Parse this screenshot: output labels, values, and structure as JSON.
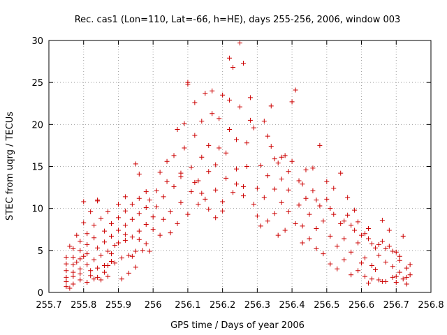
{
  "chart_data": {
    "type": "scatter",
    "title": "Rec. cas1 (Lon=110, Lat=-66, h=HE), days 255-256, 2006, window 003",
    "xlabel": "GPS time / Days of year 2006",
    "ylabel": "STEC from uqrg / TECUs",
    "xlim": [
      255.7,
      256.8
    ],
    "ylim": [
      0,
      30
    ],
    "xticks": [
      255.7,
      255.8,
      255.9,
      256,
      256.1,
      256.2,
      256.3,
      256.4,
      256.5,
      256.6,
      256.7,
      256.8
    ],
    "xtick_labels": [
      "255.7",
      "255.8",
      "255.9",
      "256",
      "256.1",
      "256.2",
      "256.3",
      "256.4",
      "256.5",
      "256.6",
      "256.7",
      "256.8"
    ],
    "yticks": [
      0,
      5,
      10,
      15,
      20,
      25,
      30
    ],
    "ytick_labels": [
      "0",
      "5",
      "10",
      "15",
      "20",
      "25",
      "30"
    ],
    "grid": true,
    "legend": "none",
    "marker": "plus",
    "color": "#cc0000",
    "series": [
      {
        "points": [
          [
            255.75,
            0.7
          ],
          [
            255.76,
            0.5
          ],
          [
            255.77,
            1.0
          ],
          [
            255.79,
            1.5
          ],
          [
            255.81,
            1.2
          ],
          [
            255.83,
            1.6
          ],
          [
            255.85,
            1.5
          ],
          [
            255.87,
            1.9
          ],
          [
            255.75,
            1.3
          ],
          [
            255.77,
            1.9
          ],
          [
            255.79,
            2.2
          ],
          [
            255.82,
            2.6
          ],
          [
            255.84,
            2.9
          ],
          [
            255.86,
            3.2
          ],
          [
            255.88,
            3.7
          ],
          [
            255.91,
            4.1
          ],
          [
            255.93,
            4.4
          ],
          [
            255.95,
            4.9
          ],
          [
            255.75,
            1.8
          ],
          [
            255.77,
            2.4
          ],
          [
            255.79,
            2.8
          ],
          [
            255.81,
            3.3
          ],
          [
            255.83,
            3.9
          ],
          [
            255.85,
            4.4
          ],
          [
            255.87,
            4.9
          ],
          [
            255.89,
            5.6
          ],
          [
            255.92,
            6.2
          ],
          [
            255.94,
            6.6
          ],
          [
            255.96,
            7.3
          ],
          [
            255.75,
            2.6
          ],
          [
            255.77,
            3.3
          ],
          [
            255.79,
            4.0
          ],
          [
            255.81,
            4.6
          ],
          [
            255.84,
            5.3
          ],
          [
            255.86,
            6.0
          ],
          [
            255.88,
            6.7
          ],
          [
            255.9,
            7.4
          ],
          [
            255.92,
            8.0
          ],
          [
            255.94,
            8.7
          ],
          [
            255.96,
            9.4
          ],
          [
            255.98,
            10.1
          ],
          [
            255.75,
            3.4
          ],
          [
            255.77,
            4.2
          ],
          [
            255.79,
            5.0
          ],
          [
            255.81,
            5.7
          ],
          [
            255.83,
            6.5
          ],
          [
            255.86,
            7.3
          ],
          [
            255.88,
            8.2
          ],
          [
            255.9,
            8.9
          ],
          [
            255.92,
            9.7
          ],
          [
            255.94,
            10.5
          ],
          [
            255.96,
            11.2
          ],
          [
            255.98,
            12.0
          ],
          [
            255.75,
            4.2
          ],
          [
            255.77,
            5.2
          ],
          [
            255.79,
            6.1
          ],
          [
            255.81,
            7.0
          ],
          [
            255.83,
            8.0
          ],
          [
            255.85,
            8.8
          ],
          [
            255.87,
            9.6
          ],
          [
            255.9,
            10.5
          ],
          [
            255.92,
            11.4
          ],
          [
            255.76,
            5.5
          ],
          [
            255.78,
            6.8
          ],
          [
            255.8,
            8.3
          ],
          [
            255.82,
            9.6
          ],
          [
            255.84,
            10.9
          ],
          [
            255.95,
            15.3
          ],
          [
            255.96,
            14.1
          ],
          [
            255.8,
            10.8
          ],
          [
            255.84,
            11.0
          ],
          [
            255.87,
            3.2
          ],
          [
            255.89,
            3.5
          ],
          [
            255.91,
            1.6
          ],
          [
            255.93,
            2.3
          ],
          [
            255.95,
            3.0
          ],
          [
            255.97,
            5.0
          ],
          [
            255.98,
            5.8
          ],
          [
            255.99,
            4.9
          ],
          [
            255.78,
            3.6
          ],
          [
            255.8,
            4.3
          ],
          [
            255.82,
            2.0
          ],
          [
            255.84,
            1.8
          ],
          [
            255.86,
            2.4
          ],
          [
            255.88,
            4.6
          ],
          [
            255.9,
            5.9
          ],
          [
            255.92,
            6.9
          ],
          [
            255.94,
            4.3
          ],
          [
            255.96,
            6.3
          ],
          [
            255.98,
            8.1
          ],
          [
            255.99,
            11.0
          ],
          [
            256.0,
            7.5
          ],
          [
            256.0,
            9.0
          ],
          [
            256.01,
            10.2
          ],
          [
            256.01,
            12.1
          ],
          [
            256.02,
            14.3
          ],
          [
            256.02,
            6.8
          ],
          [
            256.03,
            8.7
          ],
          [
            256.03,
            11.4
          ],
          [
            256.04,
            13.2
          ],
          [
            256.04,
            15.6
          ],
          [
            256.05,
            7.1
          ],
          [
            256.05,
            9.6
          ],
          [
            256.06,
            12.6
          ],
          [
            256.06,
            16.3
          ],
          [
            256.07,
            19.4
          ],
          [
            256.07,
            8.2
          ],
          [
            256.08,
            10.7
          ],
          [
            256.08,
            13.8
          ],
          [
            256.09,
            17.2
          ],
          [
            256.09,
            20.1
          ],
          [
            256.1,
            24.8
          ],
          [
            256.1,
            9.3
          ],
          [
            256.11,
            12.0
          ],
          [
            256.11,
            14.9
          ],
          [
            256.12,
            18.7
          ],
          [
            256.12,
            22.6
          ],
          [
            256.13,
            10.5
          ],
          [
            256.13,
            13.3
          ],
          [
            256.14,
            16.1
          ],
          [
            256.14,
            20.4
          ],
          [
            256.15,
            23.7
          ],
          [
            256.15,
            11.1
          ],
          [
            256.16,
            14.4
          ],
          [
            256.16,
            17.5
          ],
          [
            256.17,
            21.3
          ],
          [
            256.17,
            24.0
          ],
          [
            256.18,
            12.2
          ],
          [
            256.18,
            15.2
          ],
          [
            256.19,
            17.2
          ],
          [
            256.19,
            20.7
          ],
          [
            256.2,
            23.5
          ],
          [
            256.2,
            10.8
          ],
          [
            256.21,
            13.6
          ],
          [
            256.21,
            16.6
          ],
          [
            256.22,
            19.4
          ],
          [
            256.22,
            22.9
          ],
          [
            256.23,
            26.8
          ],
          [
            256.23,
            11.9
          ],
          [
            256.24,
            14.7
          ],
          [
            256.24,
            18.2
          ],
          [
            256.25,
            29.7
          ],
          [
            256.25,
            22.1
          ],
          [
            256.26,
            27.3
          ],
          [
            256.26,
            12.6
          ],
          [
            256.27,
            15.0
          ],
          [
            256.27,
            17.8
          ],
          [
            256.28,
            20.5
          ],
          [
            256.28,
            23.2
          ],
          [
            256.29,
            10.5
          ],
          [
            256.29,
            19.6
          ],
          [
            256.22,
            27.9
          ],
          [
            256.1,
            25.0
          ],
          [
            256.08,
            14.2
          ],
          [
            256.12,
            13.1
          ],
          [
            256.14,
            11.8
          ],
          [
            256.16,
            9.9
          ],
          [
            256.18,
            8.9
          ],
          [
            256.2,
            9.7
          ],
          [
            256.24,
            12.9
          ],
          [
            256.26,
            11.5
          ],
          [
            256.3,
            12.4
          ],
          [
            256.3,
            9.1
          ],
          [
            256.31,
            15.1
          ],
          [
            256.31,
            7.9
          ],
          [
            256.32,
            11.3
          ],
          [
            256.32,
            20.4
          ],
          [
            256.33,
            8.5
          ],
          [
            256.33,
            13.9
          ],
          [
            256.34,
            17.4
          ],
          [
            256.34,
            22.2
          ],
          [
            256.35,
            9.4
          ],
          [
            256.35,
            12.3
          ],
          [
            256.36,
            15.4
          ],
          [
            256.36,
            6.8
          ],
          [
            256.37,
            10.7
          ],
          [
            256.37,
            13.5
          ],
          [
            256.38,
            16.3
          ],
          [
            256.38,
            7.4
          ],
          [
            256.39,
            9.6
          ],
          [
            256.39,
            12.2
          ],
          [
            256.4,
            15.6
          ],
          [
            256.4,
            22.7
          ],
          [
            256.41,
            24.1
          ],
          [
            256.41,
            8.2
          ],
          [
            256.42,
            10.4
          ],
          [
            256.42,
            13.3
          ],
          [
            256.43,
            5.9
          ],
          [
            256.43,
            7.9
          ],
          [
            256.44,
            11.2
          ],
          [
            256.44,
            14.6
          ],
          [
            256.45,
            6.4
          ],
          [
            256.45,
            9.3
          ],
          [
            256.46,
            12.1
          ],
          [
            256.46,
            14.8
          ],
          [
            256.47,
            5.2
          ],
          [
            256.47,
            7.6
          ],
          [
            256.48,
            10.3
          ],
          [
            256.48,
            17.5
          ],
          [
            256.49,
            4.6
          ],
          [
            256.49,
            8.5
          ],
          [
            256.5,
            11.1
          ],
          [
            256.5,
            13.2
          ],
          [
            256.51,
            3.4
          ],
          [
            256.51,
            6.7
          ],
          [
            256.52,
            9.3
          ],
          [
            256.52,
            12.4
          ],
          [
            256.53,
            2.8
          ],
          [
            256.53,
            5.5
          ],
          [
            256.54,
            8.2
          ],
          [
            256.54,
            14.2
          ],
          [
            256.55,
            3.9
          ],
          [
            256.55,
            6.4
          ],
          [
            256.56,
            9.2
          ],
          [
            256.56,
            11.3
          ],
          [
            256.57,
            2.1
          ],
          [
            256.57,
            4.8
          ],
          [
            256.58,
            7.4
          ],
          [
            256.58,
            9.8
          ],
          [
            256.59,
            2.6
          ],
          [
            256.59,
            5.9
          ],
          [
            256.6,
            3.5
          ],
          [
            256.6,
            6.8
          ],
          [
            256.61,
            1.9
          ],
          [
            256.61,
            4.1
          ],
          [
            256.62,
            6.4
          ],
          [
            256.62,
            7.6
          ],
          [
            256.63,
            1.6
          ],
          [
            256.63,
            3.2
          ],
          [
            256.64,
            5.3
          ],
          [
            256.64,
            2.7
          ],
          [
            256.65,
            1.5
          ],
          [
            256.65,
            4.4
          ],
          [
            256.66,
            6.1
          ],
          [
            256.66,
            8.6
          ],
          [
            256.67,
            1.3
          ],
          [
            256.67,
            3.6
          ],
          [
            256.68,
            5.5
          ],
          [
            256.68,
            7.4
          ],
          [
            256.69,
            1.8
          ],
          [
            256.69,
            3.1
          ],
          [
            256.7,
            4.8
          ],
          [
            256.7,
            1.2
          ],
          [
            256.71,
            2.4
          ],
          [
            256.71,
            4.3
          ],
          [
            256.72,
            1.6
          ],
          [
            256.72,
            6.7
          ],
          [
            256.73,
            2.9
          ],
          [
            256.73,
            1.0
          ],
          [
            256.74,
            2.1
          ],
          [
            256.74,
            3.3
          ],
          [
            256.33,
            18.6
          ],
          [
            256.35,
            15.9
          ],
          [
            256.37,
            16.1
          ],
          [
            256.39,
            14.4
          ],
          [
            256.43,
            12.9
          ],
          [
            256.47,
            11.0
          ],
          [
            256.51,
            10.0
          ],
          [
            256.55,
            8.5
          ],
          [
            256.57,
            8.0
          ],
          [
            256.59,
            8.4
          ],
          [
            256.61,
            7.0
          ],
          [
            256.63,
            5.8
          ],
          [
            256.65,
            5.7
          ],
          [
            256.67,
            5.2
          ],
          [
            256.69,
            4.9
          ],
          [
            256.71,
            3.8
          ],
          [
            256.73,
            1.8
          ],
          [
            256.62,
            1.1
          ],
          [
            256.66,
            1.3
          ],
          [
            256.7,
            1.9
          ]
        ]
      }
    ]
  }
}
